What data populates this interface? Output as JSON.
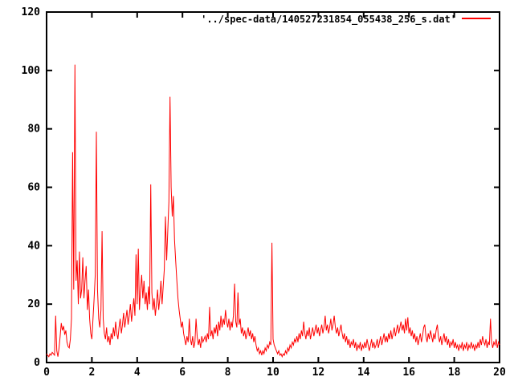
{
  "colors": {
    "background": "#ffffff",
    "foreground": "#000000",
    "series": "#ff0000"
  },
  "legend": {
    "label": "'../spec-data/140527231854_055438_256_s.dat'"
  },
  "chart_data": {
    "type": "line",
    "title": "",
    "xlabel": "",
    "ylabel": "",
    "xlim": [
      0,
      20
    ],
    "ylim": [
      0,
      120
    ],
    "x_ticks": [
      0,
      2,
      4,
      6,
      8,
      10,
      12,
      14,
      16,
      18,
      20
    ],
    "y_ticks": [
      0,
      20,
      40,
      60,
      80,
      100,
      120
    ],
    "grid": false,
    "legend_position": "top-right",
    "series": [
      {
        "name": "'../spec-data/140527231854_055438_256_s.dat'",
        "color": "#ff0000",
        "x0": 0,
        "dx": 0.05,
        "values": [
          3,
          2.5,
          2,
          3,
          2.5,
          3.5,
          3,
          2.5,
          16,
          4,
          2,
          5,
          9,
          13.5,
          11,
          12.5,
          9.5,
          11,
          7,
          5.5,
          5,
          8,
          15,
          72,
          25,
          102,
          28,
          35,
          20,
          38,
          22,
          25,
          36,
          22,
          28,
          33,
          18,
          25,
          15,
          10,
          8,
          15,
          22,
          30,
          79,
          25,
          15,
          12,
          18,
          45,
          15,
          10,
          8,
          12,
          7,
          9,
          6,
          10,
          8,
          12,
          9,
          14,
          10,
          8,
          12,
          15,
          10,
          13,
          17,
          12,
          15,
          18,
          13,
          16,
          20,
          14,
          18,
          22,
          16,
          37,
          20,
          39,
          18,
          25,
          30,
          22,
          28,
          20,
          24,
          18,
          26,
          20,
          61,
          24,
          18,
          22,
          16,
          20,
          25,
          18,
          22,
          28,
          20,
          26,
          32,
          50,
          35,
          45,
          55,
          91,
          60,
          50,
          57,
          42,
          35,
          28,
          22,
          18,
          15,
          12,
          14,
          10,
          8,
          6,
          9,
          7,
          15,
          8,
          6,
          9,
          5,
          7,
          15,
          9,
          6,
          8,
          5,
          9,
          7,
          8,
          9,
          7,
          10,
          8,
          19,
          9,
          11,
          8,
          12,
          10,
          13,
          9,
          14,
          11,
          16,
          12,
          15,
          13,
          18,
          14,
          12,
          15,
          11,
          14,
          12,
          16,
          27,
          14,
          12,
          24,
          13,
          15,
          10,
          12,
          9,
          11,
          8,
          10,
          12,
          9,
          11,
          8,
          10,
          7,
          9,
          6,
          4,
          5,
          3,
          4,
          2.5,
          4,
          3,
          5,
          4,
          6,
          5,
          7,
          6,
          41,
          8,
          6,
          5,
          4,
          3,
          4,
          2.5,
          3,
          2,
          3,
          2.5,
          4,
          3,
          5,
          4,
          6,
          5,
          7,
          6,
          8,
          7,
          9,
          7,
          10,
          8,
          11,
          9,
          14,
          10,
          8,
          11,
          9,
          12,
          8,
          10,
          12,
          9,
          11,
          13,
          10,
          12,
          9,
          11,
          13,
          10,
          12,
          16,
          11,
          13,
          10,
          12,
          15,
          11,
          13,
          16,
          12,
          10,
          12,
          9,
          11,
          13,
          10,
          8,
          10,
          7,
          9,
          6,
          8,
          5,
          7,
          6,
          8,
          5,
          7,
          4,
          6,
          5,
          7,
          4,
          6,
          5,
          7,
          5,
          8,
          6,
          4,
          6,
          8,
          5,
          7,
          5,
          6,
          8,
          5,
          7,
          9,
          6,
          8,
          10,
          7,
          9,
          7,
          10,
          8,
          11,
          8,
          10,
          12,
          9,
          11,
          13,
          10,
          12,
          14,
          11,
          13,
          10,
          15,
          11,
          15.5,
          10,
          12,
          9,
          11,
          8,
          10,
          7,
          9,
          6,
          8,
          10,
          7,
          9,
          12,
          13,
          9,
          7,
          10,
          8,
          11,
          9,
          7,
          10,
          8,
          11,
          13,
          9,
          7,
          9,
          6,
          8,
          10,
          7,
          9,
          6,
          8,
          5,
          7,
          6,
          8,
          5,
          7,
          5,
          6,
          4,
          6,
          5,
          7,
          4,
          6,
          5,
          7,
          4,
          6,
          5,
          7,
          5,
          6,
          4,
          6,
          5,
          7,
          5,
          8,
          6,
          9,
          7,
          6,
          8,
          5,
          7,
          6,
          15,
          7,
          5,
          7,
          6,
          8,
          5,
          7,
          6
        ]
      }
    ]
  }
}
